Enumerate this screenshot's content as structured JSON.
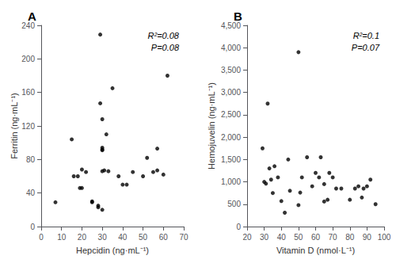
{
  "chart_data": [
    {
      "type": "scatter",
      "title": "A",
      "xlabel": "Hepcidin (ng·mL⁻¹)",
      "ylabel": "Ferritin (ng·mL⁻¹)",
      "annotations": [
        "R²=0.08",
        "P=0.08"
      ],
      "xlim": [
        0,
        70
      ],
      "ylim": [
        0,
        240
      ],
      "xticks": [
        0,
        10,
        20,
        30,
        40,
        50,
        60,
        70
      ],
      "yticks": [
        0,
        40,
        80,
        120,
        160,
        200,
        240
      ],
      "color": "black",
      "marker": "circle",
      "grid": false,
      "x": [
        7,
        15,
        16,
        18,
        19,
        20,
        20,
        22,
        25,
        25,
        28,
        28,
        29,
        29,
        30,
        30,
        30,
        30,
        30,
        30,
        31,
        32,
        33,
        35,
        38,
        40,
        42,
        45,
        50,
        52,
        55,
        57,
        57,
        60,
        62
      ],
      "values": [
        29,
        104,
        60,
        60,
        46,
        46,
        68,
        65,
        29,
        30,
        23,
        25,
        229,
        147,
        128,
        94,
        92,
        91,
        66,
        20,
        67,
        110,
        66,
        165,
        60,
        50,
        50,
        65,
        60,
        82,
        65,
        67,
        93,
        62,
        180
      ]
    },
    {
      "type": "scatter",
      "title": "B",
      "xlabel": "Vitamin D (nmol·L⁻¹)",
      "ylabel": "Hemojuvelin (ng·mL⁻¹)",
      "annotations": [
        "R²=0.1",
        "P=0.07"
      ],
      "xlim": [
        20,
        100
      ],
      "ylim": [
        0,
        4500
      ],
      "xticks": [
        20,
        30,
        40,
        50,
        60,
        70,
        80,
        90,
        100
      ],
      "yticks": [
        0,
        500,
        {
          "value": 1000,
          "label": "1,000"
        },
        {
          "value": 1500,
          "label": "1,500"
        },
        {
          "value": 2000,
          "label": "2,000"
        },
        {
          "value": 2500,
          "label": "2,500"
        },
        {
          "value": 3000,
          "label": "3,000"
        },
        {
          "value": 3500,
          "label": "3,500"
        },
        {
          "value": 4000,
          "label": "4,000"
        },
        {
          "value": 4500,
          "label": "4,500"
        }
      ],
      "color": "black",
      "marker": "circle",
      "grid": false,
      "x": [
        29,
        30,
        31,
        32,
        33,
        34,
        35,
        36,
        38,
        40,
        42,
        44,
        45,
        50,
        50,
        51,
        52,
        55,
        58,
        60,
        62,
        63,
        65,
        65,
        67,
        68,
        70,
        72,
        75,
        80,
        83,
        85,
        87,
        88,
        90,
        92,
        95
      ],
      "values": [
        1750,
        1000,
        960,
        2750,
        1300,
        1050,
        750,
        1350,
        1100,
        570,
        310,
        1500,
        800,
        3900,
        480,
        760,
        1100,
        1550,
        900,
        1200,
        1100,
        1550,
        560,
        950,
        600,
        1200,
        1100,
        850,
        850,
        600,
        850,
        900,
        650,
        850,
        900,
        1050,
        500
      ]
    }
  ]
}
